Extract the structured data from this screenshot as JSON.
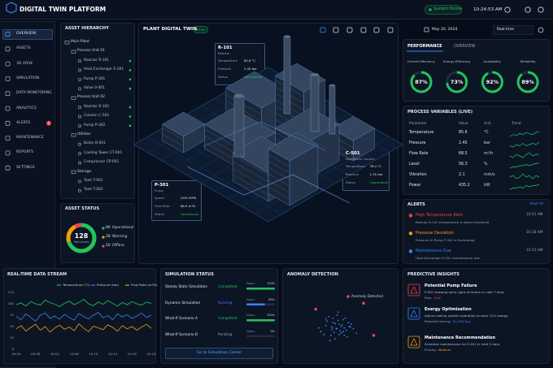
{
  "header": {
    "title": "DIGITAL TWIN PLATFORM",
    "status": "System Online",
    "time": "10:24:53 AM"
  },
  "nav": [
    "OVERVIEW",
    "ASSETS",
    "3D VIEW",
    "SIMULATION",
    "DATA MONITORING",
    "ANALYTICS",
    "ALERTS",
    "MAINTENANCE",
    "REPORTS",
    "SETTINGS"
  ],
  "nav_badge": "2",
  "hierarchy": {
    "title": "ASSET HIERARCHY",
    "root": "Main Plant",
    "groups": [
      {
        "name": "Process Unit 01",
        "items": [
          {
            "name": "Reactor R-101",
            "color": "#22c55e"
          },
          {
            "name": "Heat Exchanger E-201",
            "color": "#22c55e"
          },
          {
            "name": "Pump P-301",
            "color": "#22c55e"
          },
          {
            "name": "Valve V-401",
            "color": "#22c55e"
          }
        ]
      },
      {
        "name": "Process Unit 02",
        "items": [
          {
            "name": "Reactor R-102",
            "color": "#22c55e"
          },
          {
            "name": "Column C-501",
            "color": "#22c55e"
          },
          {
            "name": "Pump P-302",
            "color": "#22c55e"
          }
        ]
      },
      {
        "name": "Utilities",
        "items": [
          {
            "name": "Boiler B-001"
          },
          {
            "name": "Cooling Tower CT-001"
          },
          {
            "name": "Compressor CP-001"
          }
        ]
      },
      {
        "name": "Storage",
        "items": [
          {
            "name": "Tank T-001"
          },
          {
            "name": "Tank T-002"
          }
        ]
      }
    ]
  },
  "asset_status": {
    "title": "ASSET STATUS",
    "total": 128,
    "total_label": "Total Assets",
    "series": [
      {
        "name": "Operational",
        "value": 90,
        "color": "#22c55e"
      },
      {
        "name": "Warning",
        "value": 28,
        "color": "#f59e0b"
      },
      {
        "name": "Offline",
        "value": 10,
        "color": "#ef4444"
      }
    ]
  },
  "twin_view": {
    "title": "PLANT DIGITAL TWIN",
    "live": "Live",
    "date": "May 20, 2024",
    "mode": "Real-time",
    "cards": [
      {
        "id": "R-101",
        "type": "Reactor",
        "rows": [
          [
            "Temperature",
            "85.6 °C"
          ],
          [
            "Pressure",
            "2.45 bar"
          ],
          [
            "Status",
            "Operational"
          ]
        ]
      },
      {
        "id": "C-501",
        "type": "Distillation Column",
        "rows": [
          [
            "Temperature",
            "78.4 °C"
          ],
          [
            "Pressure",
            "1.35 bar"
          ],
          [
            "Status",
            "Operational"
          ]
        ]
      },
      {
        "id": "P-301",
        "type": "Pump",
        "rows": [
          [
            "Speed",
            "2450 RPM"
          ],
          [
            "Flow Rate",
            "68.5 m³/h"
          ],
          [
            "Status",
            "Operational"
          ]
        ]
      }
    ]
  },
  "performance": {
    "tabs": [
      "PERFORMANCE",
      "OVERVIEW"
    ],
    "color": "#22c55e",
    "gauge_range": [
      0,
      100
    ],
    "gauges": [
      {
        "name": "Overall Efficiency",
        "value": 87,
        "value_label": "87%"
      },
      {
        "name": "Energy Efficiency",
        "value": 73,
        "value_label": "73%"
      },
      {
        "name": "Availability",
        "value": 92,
        "value_label": "92%"
      },
      {
        "name": "Reliability",
        "value": 89,
        "value_label": "89%"
      }
    ]
  },
  "process_variables": {
    "title": "PROCESS VARIABLES (LIVE)",
    "columns": [
      "Parameter",
      "Value",
      "Unit",
      "Trend"
    ],
    "rows": [
      {
        "parameter": "Temperature",
        "value": "85.6",
        "unit": "°C",
        "trend": [
          4,
          6,
          5,
          7,
          6,
          8,
          7,
          6,
          8,
          9
        ]
      },
      {
        "parameter": "Pressure",
        "value": "2.45",
        "unit": "bar",
        "trend": [
          5,
          4,
          6,
          5,
          7,
          5,
          6,
          7,
          6,
          8
        ]
      },
      {
        "parameter": "Flow Rate",
        "value": "68.5",
        "unit": "m³/h",
        "trend": [
          6,
          5,
          7,
          6,
          5,
          7,
          8,
          6,
          7,
          7
        ]
      },
      {
        "parameter": "Level",
        "value": "56.3",
        "unit": "%",
        "trend": [
          4,
          5,
          5,
          6,
          6,
          7,
          6,
          7,
          8,
          8
        ]
      },
      {
        "parameter": "Vibration",
        "value": "2.1",
        "unit": "mm/s",
        "trend": [
          6,
          7,
          5,
          6,
          8,
          6,
          7,
          5,
          7,
          6
        ]
      },
      {
        "parameter": "Power",
        "value": "435.2",
        "unit": "kW",
        "trend": [
          5,
          6,
          6,
          7,
          6,
          8,
          7,
          8,
          8,
          9
        ]
      }
    ]
  },
  "alerts": {
    "title": "ALERTS",
    "view_all": "View All",
    "items": [
      {
        "title": "High Temperature Alert",
        "detail": "Reactor R-101 temperature is above threshold",
        "time": "10:21 AM",
        "color": "#ef4444"
      },
      {
        "title": "Pressure Deviation",
        "detail": "Pressure in Pump P-301 is fluctuating",
        "time": "10:18 AM",
        "color": "#f59e0b"
      },
      {
        "title": "Maintenance Due",
        "detail": "Heat Exchanger E-201 maintenance due",
        "time": "10:15 AM",
        "color": "#3b82f6"
      }
    ]
  },
  "data_stream": {
    "title": "REAL-TIME DATA STREAM",
    "type": "line",
    "x": [
      "09:54",
      null,
      null,
      null,
      "09:58",
      null,
      null,
      null,
      "10:02",
      null,
      null,
      null,
      "10:06",
      null,
      null,
      null,
      "10:10",
      null,
      null,
      null,
      "10:14",
      null,
      null,
      null,
      "10:18",
      null,
      null,
      null,
      "10:24"
    ],
    "ylim": [
      0,
      125
    ],
    "yticks": [
      0,
      25,
      50,
      75,
      100,
      125
    ],
    "grid": true,
    "series": [
      {
        "name": "Temperature (°C)",
        "color": "#22c55e",
        "values": [
          98,
          102,
          95,
          105,
          100,
          97,
          108,
          103,
          99,
          94,
          101,
          106,
          98,
          103,
          110,
          100,
          96,
          104,
          99,
          107,
          101,
          95,
          103,
          98,
          105,
          100,
          97,
          104,
          101
        ]
      },
      {
        "name": "Pressure (bar)",
        "color": "#3b82f6",
        "values": [
          72,
          65,
          78,
          70,
          62,
          75,
          80,
          68,
          73,
          66,
          77,
          70,
          64,
          79,
          72,
          67,
          75,
          81,
          69,
          74,
          65,
          78,
          71,
          76,
          68,
          73,
          80,
          70,
          75
        ]
      },
      {
        "name": "Flow Rate (m³/h)",
        "color": "#f59e0b",
        "values": [
          45,
          52,
          40,
          48,
          55,
          42,
          50,
          38,
          47,
          53,
          44,
          49,
          41,
          56,
          46,
          39,
          51,
          47,
          43,
          54,
          48,
          40,
          52,
          45,
          50,
          42,
          49,
          55,
          46
        ]
      }
    ]
  },
  "simulation": {
    "title": "SIMULATION STATUS",
    "progress_range": [
      0,
      100
    ],
    "button": "Go to Simulation Center",
    "items": [
      {
        "name": "Steady State Simulation",
        "status": "Completed",
        "color": "#22c55e",
        "progress_label": "Conv.:",
        "progress": 100,
        "progress_value_label": "100%"
      },
      {
        "name": "Dynamic Simulation",
        "status": "Running",
        "color": "#3b82f6",
        "progress_label": "Conv.:",
        "progress": 65,
        "progress_value_label": "65%"
      },
      {
        "name": "What-If Scenario A",
        "status": "Completed",
        "color": "#22c55e",
        "progress_label": "Conv.:",
        "progress": 100,
        "progress_value_label": "100%"
      },
      {
        "name": "What-If Scenario B",
        "status": "Pending",
        "color": "#94a3b8",
        "progress_label": "Conv.:",
        "progress": 0,
        "progress_value_label": "0%"
      }
    ]
  },
  "anomaly": {
    "title": "ANOMALY DETECTION",
    "type": "scatter",
    "legend": "Anomaly Detected",
    "xlim": [
      0,
      100
    ],
    "ylim": [
      0,
      100
    ],
    "normal": {
      "color": "#3b82f6",
      "x": [
        30,
        35,
        40,
        42,
        45,
        48,
        50,
        52,
        55,
        58,
        38,
        44,
        47,
        53,
        60,
        33,
        41,
        46,
        49,
        56,
        62,
        36,
        43,
        51,
        54,
        28,
        65,
        39,
        47,
        52,
        44,
        57,
        41,
        50,
        35,
        48,
        59,
        46,
        42,
        53
      ],
      "y": [
        40,
        48,
        35,
        52,
        44,
        50,
        38,
        56,
        42,
        47,
        60,
        30,
        55,
        45,
        50,
        36,
        46,
        62,
        41,
        33,
        44,
        54,
        39,
        49,
        58,
        45,
        38,
        28,
        66,
        40,
        51,
        52,
        43,
        47,
        57,
        36,
        46,
        44,
        58,
        35
      ]
    },
    "anomalies": {
      "color": "#ef4444",
      "x": [
        72,
        82,
        25
      ],
      "y": [
        78,
        35,
        70
      ]
    }
  },
  "insights": {
    "title": "PREDICTIVE INSIGHTS",
    "items": [
      {
        "title": "Potential Pump Failure",
        "text": "P-301 showing early signs of failure in next 7 days",
        "key": "Risk:",
        "value": "High",
        "color": "#ef4444"
      },
      {
        "title": "Energy Optimization",
        "text": "Adjust cooling system operation to save 12% energy",
        "key": "Potential Saving:",
        "value": "$2,450/day",
        "color": "#3b82f6"
      },
      {
        "title": "Maintenance Recommendation",
        "text": "Schedule maintenance for E-201 in next 5 days",
        "key": "Priority:",
        "value": "Medium",
        "color": "#f59e0b"
      }
    ]
  }
}
